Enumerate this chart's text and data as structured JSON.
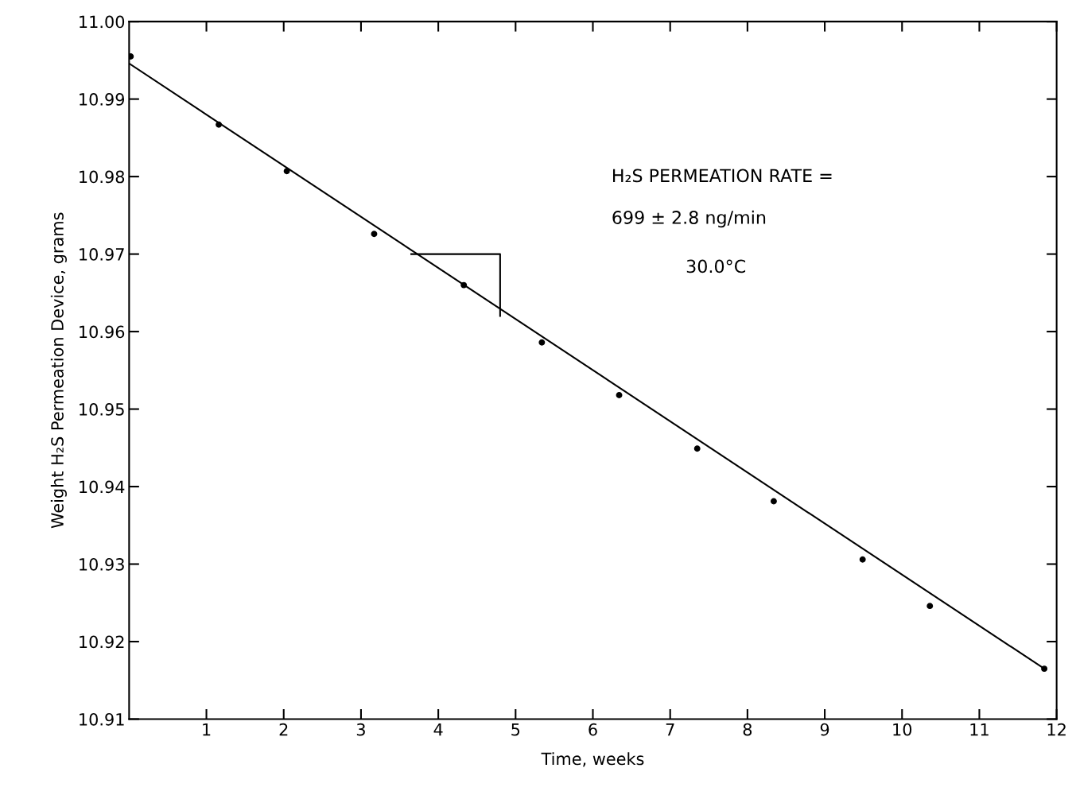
{
  "chart_data": {
    "type": "scatter",
    "xlabel": "Time, weeks",
    "ylabel": "Weight H₂S Permeation Device, grams",
    "xlim": [
      0,
      12
    ],
    "xticks": [
      1,
      2,
      3,
      4,
      5,
      6,
      7,
      8,
      9,
      10,
      11,
      12
    ],
    "ylim": [
      10.91,
      11.0
    ],
    "yticks": [
      10.91,
      10.92,
      10.93,
      10.94,
      10.95,
      10.96,
      10.97,
      10.98,
      10.99,
      {
        "value": 11.0,
        "label": "11.00"
      }
    ],
    "grid": false,
    "legend": false,
    "series": [
      {
        "marker": "circle",
        "color": "#000000",
        "x": [
          0.02,
          1.16,
          2.04,
          3.17,
          4.33,
          5.34,
          6.34,
          7.35,
          8.34,
          9.49,
          10.36,
          11.84
        ],
        "values": [
          10.9955,
          10.9867,
          10.9807,
          10.9726,
          10.966,
          10.9586,
          10.9518,
          10.9449,
          10.9381,
          10.9306,
          10.9246,
          10.9165
        ]
      },
      {
        "type": "line",
        "marker": "none",
        "color": "#000000",
        "x": [
          0,
          11.84
        ],
        "values": [
          10.9946,
          10.9165
        ]
      },
      {
        "type": "line",
        "marker": "none",
        "color": "#000000",
        "x": [
          3.65,
          4.8,
          4.8
        ],
        "values": [
          10.97,
          10.97,
          10.962
        ]
      }
    ],
    "annotations": [
      "H₂S PERMEATION RATE =",
      "699 ± 2.8 ng/min",
      "30.0°C"
    ]
  }
}
